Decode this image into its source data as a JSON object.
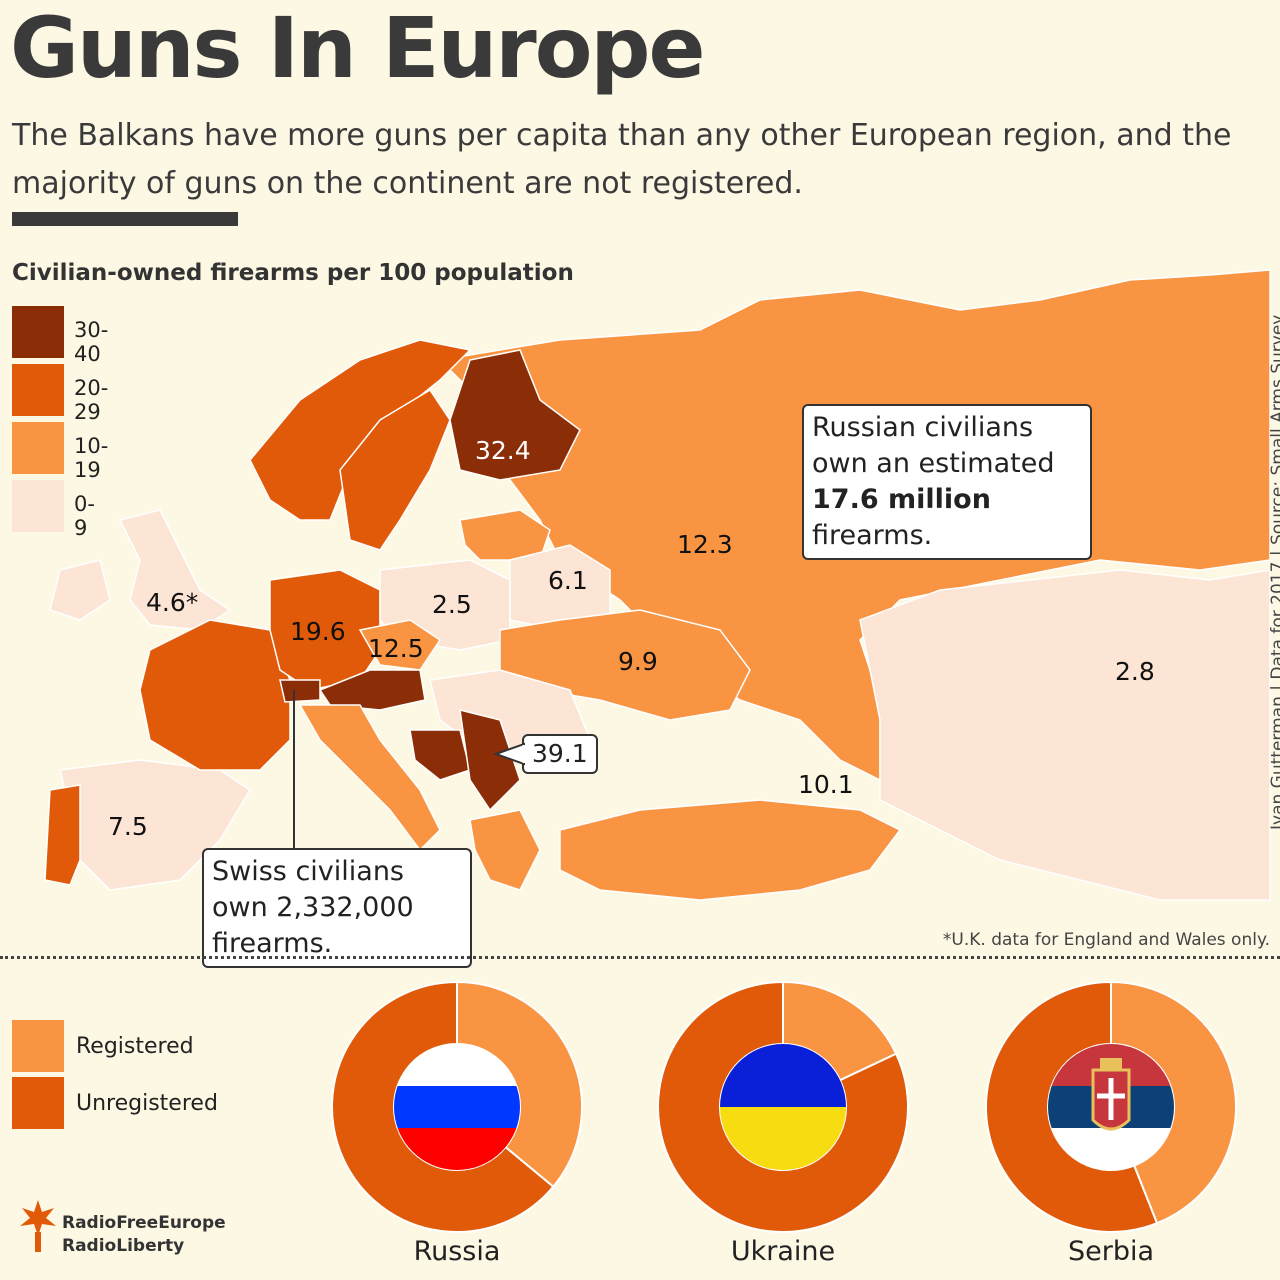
{
  "title": "Guns In Europe",
  "subtitle": "The Balkans have more guns per capita than any other European region, and the majority of guns on the continent are not registered.",
  "legend": {
    "title": "Civilian-owned firearms per 100 population",
    "items": [
      {
        "label": "30-40",
        "color": "#8b2e08"
      },
      {
        "label": "20-29",
        "color": "#e05a0a"
      },
      {
        "label": "10-19",
        "color": "#f99443"
      },
      {
        "label": "0-9",
        "color": "#fde5d6"
      }
    ]
  },
  "chart_data": [
    {
      "type": "choropleth",
      "title": "Civilian-owned firearms per 100 population",
      "labels": [
        {
          "region": "Finland",
          "value": "32.4"
        },
        {
          "region": "Russia",
          "value": "12.3"
        },
        {
          "region": "Belarus",
          "value": "6.1"
        },
        {
          "region": "Poland",
          "value": "2.5"
        },
        {
          "region": "United Kingdom",
          "value": "4.6*"
        },
        {
          "region": "Germany",
          "value": "19.6"
        },
        {
          "region": "Czech Republic",
          "value": "12.5"
        },
        {
          "region": "Ukraine",
          "value": "9.9"
        },
        {
          "region": "Kazakhstan",
          "value": "2.8"
        },
        {
          "region": "Serbia",
          "value": "39.1"
        },
        {
          "region": "Georgia",
          "value": "10.1"
        },
        {
          "region": "Spain",
          "value": "7.5"
        }
      ]
    },
    {
      "type": "pie",
      "title": "Russia",
      "categories": [
        "Registered",
        "Unregistered"
      ],
      "values": [
        36,
        64
      ]
    },
    {
      "type": "pie",
      "title": "Ukraine",
      "categories": [
        "Registered",
        "Unregistered"
      ],
      "values": [
        18,
        82
      ]
    },
    {
      "type": "pie",
      "title": "Serbia",
      "categories": [
        "Registered",
        "Unregistered"
      ],
      "values": [
        44,
        56
      ]
    }
  ],
  "callouts": {
    "russia_pre": "Russian civilians own an estimated ",
    "russia_bold": "17.6 million",
    "russia_post": " firearms.",
    "swiss": "Swiss civilians own 2,332,000 firearms."
  },
  "source": "Ivan Gutterman | Data for 2017 | Source: Small Arms Survey",
  "footnote": "*U.K. data for England and Wales only.",
  "registration_legend": [
    {
      "label": "Registered",
      "color": "#f99443"
    },
    {
      "label": "Unregistered",
      "color": "#e05a0a"
    }
  ],
  "logo": {
    "line1": "RadioFreeEurope",
    "line2": "RadioLiberty"
  }
}
